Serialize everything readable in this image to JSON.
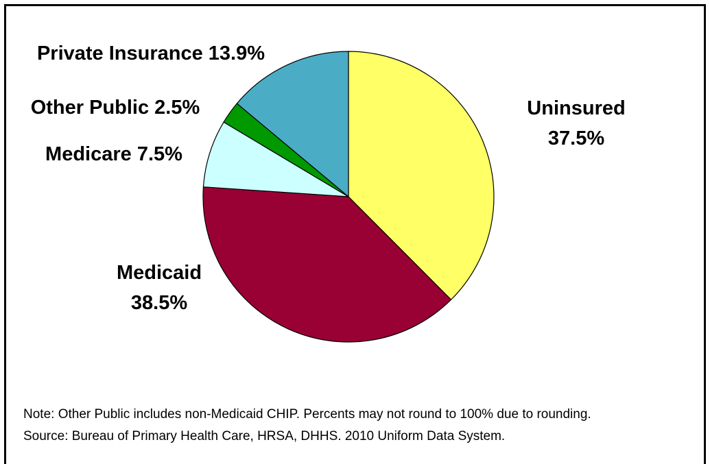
{
  "chart_data": {
    "type": "pie",
    "start_angle_deg": 0,
    "direction": "clockwise",
    "slices": [
      {
        "name": "Uninsured",
        "value": 37.5,
        "label_lines": [
          "Uninsured",
          "37.5%"
        ],
        "color": "#ffff66"
      },
      {
        "name": "Medicaid",
        "value": 38.5,
        "label_lines": [
          "Medicaid",
          "38.5%"
        ],
        "color": "#990033"
      },
      {
        "name": "Medicare",
        "value": 7.5,
        "label_lines": [
          "Medicare 7.5%"
        ],
        "color": "#ccffff"
      },
      {
        "name": "Other Public",
        "value": 2.5,
        "label_lines": [
          "Other Public 2.5%"
        ],
        "color": "#009900"
      },
      {
        "name": "Private Insurance",
        "value": 13.9,
        "label_lines": [
          "Private Insurance 13.9%"
        ],
        "color": "#4bacc6"
      }
    ]
  },
  "footnotes": {
    "note": "Note: Other Public  includes non-Medicaid CHIP.  Percents may not round to 100% due to rounding.",
    "source": "Source: Bureau of Primary Health Care, HRSA, DHHS.  2010 Uniform Data System."
  }
}
